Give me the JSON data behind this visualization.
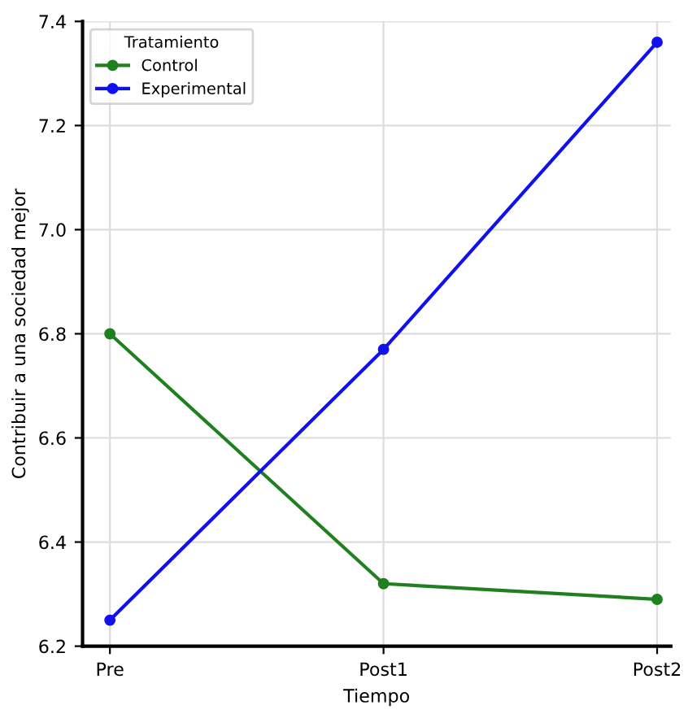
{
  "chart_data": {
    "type": "line",
    "xlabel": "Tiempo",
    "ylabel": "Contribuir a una sociedad mejor",
    "legend_title": "Tratamiento",
    "categories": [
      "Pre",
      "Post1",
      "Post2"
    ],
    "series": [
      {
        "name": "Control",
        "color": "#208020",
        "values": [
          6.8,
          6.32,
          6.29
        ]
      },
      {
        "name": "Experimental",
        "color": "#1010f0",
        "values": [
          6.25,
          6.77,
          7.36
        ]
      }
    ],
    "ylim": [
      6.2,
      7.4
    ],
    "yticks": [
      6.2,
      6.4,
      6.6,
      6.8,
      {
        "value": 7.0,
        "label": "7.0"
      },
      7.2,
      7.4
    ],
    "grid": true,
    "legend": "top left",
    "marker": "circle",
    "line_style": "solid"
  }
}
